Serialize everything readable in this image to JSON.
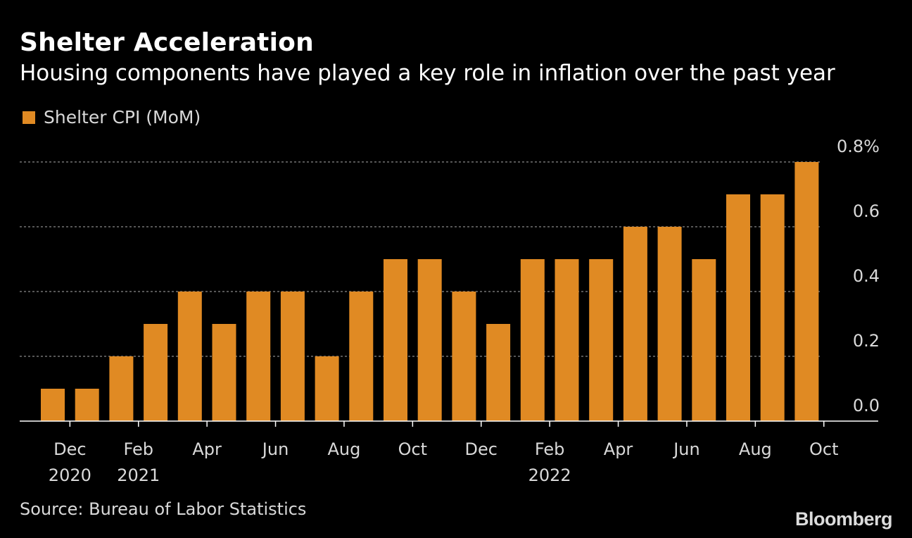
{
  "header": {
    "title": "Shelter Acceleration",
    "subtitle": "Housing components have played a key role in inflation over the past year"
  },
  "colors": {
    "background": "#000000",
    "bar": "#e08a23",
    "gridline": "#8a8a8a",
    "text": "#ffffff"
  },
  "chart_data": {
    "type": "bar",
    "title": "Shelter Acceleration",
    "subtitle": "Housing components have played a key role in inflation over the past year",
    "series": [
      {
        "name": "Shelter CPI (MoM)",
        "values": [
          0.1,
          0.1,
          0.2,
          0.3,
          0.4,
          0.3,
          0.4,
          0.4,
          0.2,
          0.4,
          0.5,
          0.5,
          0.4,
          0.3,
          0.5,
          0.5,
          0.5,
          0.6,
          0.6,
          0.5,
          0.7,
          0.7,
          0.8
        ]
      }
    ],
    "categories": [
      "Nov 2020",
      "Dec 2020",
      "Jan 2021",
      "Feb 2021",
      "Mar 2021",
      "Apr 2021",
      "May 2021",
      "Jun 2021",
      "Jul 2021",
      "Aug 2021",
      "Sep 2021",
      "Oct 2021",
      "Nov 2021",
      "Dec 2021",
      "Jan 2022",
      "Feb 2022",
      "Mar 2022",
      "Apr 2022",
      "May 2022",
      "Jun 2022",
      "Jul 2022",
      "Aug 2022",
      "Sep 2022"
    ],
    "x_ticks": [
      {
        "index": 1,
        "label": "Dec",
        "year": "2020"
      },
      {
        "index": 3,
        "label": "Feb",
        "year": "2021"
      },
      {
        "index": 5,
        "label": "Apr",
        "year": ""
      },
      {
        "index": 7,
        "label": "Jun",
        "year": ""
      },
      {
        "index": 9,
        "label": "Aug",
        "year": ""
      },
      {
        "index": 11,
        "label": "Oct",
        "year": ""
      },
      {
        "index": 13,
        "label": "Dec",
        "year": ""
      },
      {
        "index": 15,
        "label": "Feb",
        "year": "2022"
      },
      {
        "index": 17,
        "label": "Apr",
        "year": ""
      },
      {
        "index": 19,
        "label": "Jun",
        "year": ""
      },
      {
        "index": 21,
        "label": "Aug",
        "year": ""
      },
      {
        "index": 23,
        "label": "Oct",
        "year": ""
      }
    ],
    "y_ticks": [
      {
        "value": 0.0,
        "label": "0.0"
      },
      {
        "value": 0.2,
        "label": "0.2"
      },
      {
        "value": 0.4,
        "label": "0.4"
      },
      {
        "value": 0.6,
        "label": "0.6"
      },
      {
        "value": 0.8,
        "label": "0.8%"
      }
    ],
    "ylim": [
      0,
      0.8
    ],
    "xlabel": "",
    "ylabel": "",
    "grid": true,
    "legend": "top-left",
    "y_axis_side": "right"
  },
  "footer": {
    "source": "Source: Bureau of Labor Statistics",
    "brand": "Bloomberg"
  }
}
